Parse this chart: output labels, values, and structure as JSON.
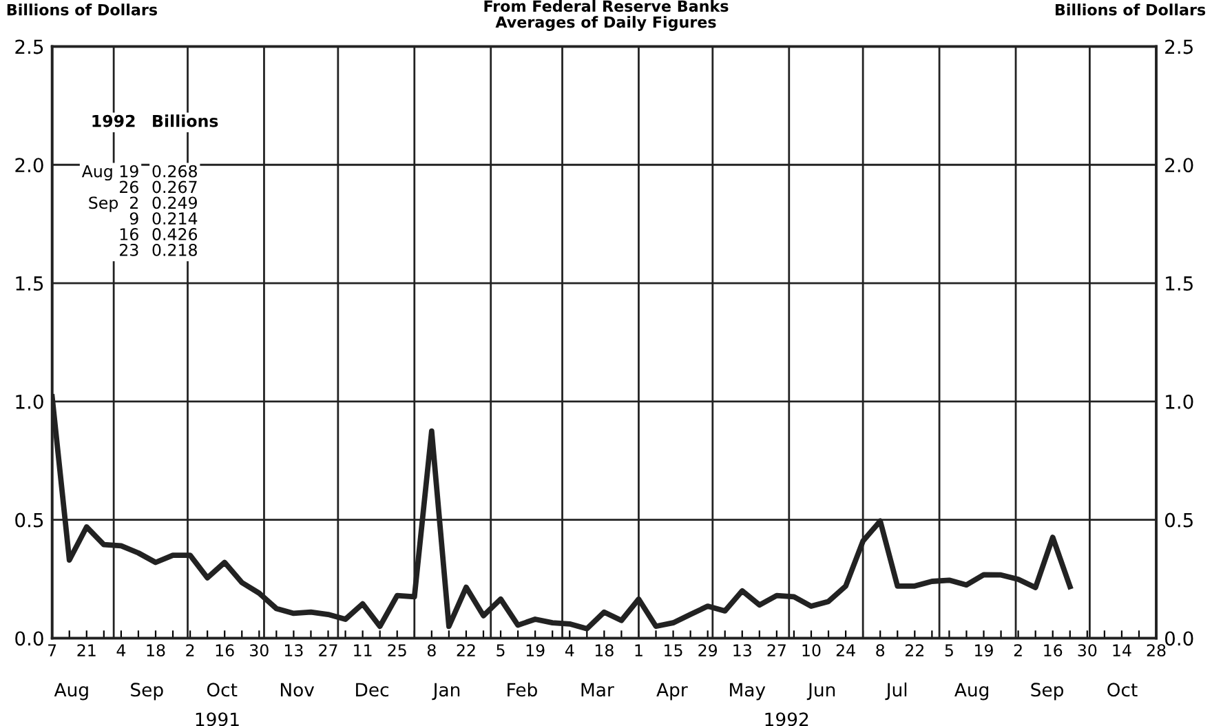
{
  "chart_data": {
    "type": "line",
    "title": "From Federal Reserve Banks\nAverages of Daily Figures",
    "ylabel": "Billions of Dollars",
    "y2label": "Billions of Dollars",
    "x": [
      "1991-08-07",
      "1991-08-14",
      "1991-08-21",
      "1991-08-28",
      "1991-09-04",
      "1991-09-11",
      "1991-09-18",
      "1991-09-25",
      "1991-10-02",
      "1991-10-09",
      "1991-10-16",
      "1991-10-23",
      "1991-10-30",
      "1991-11-06",
      "1991-11-13",
      "1991-11-20",
      "1991-11-27",
      "1991-12-04",
      "1991-12-11",
      "1991-12-18",
      "1991-12-25",
      "1992-01-01",
      "1992-01-08",
      "1992-01-15",
      "1992-01-22",
      "1992-01-29",
      "1992-02-05",
      "1992-02-12",
      "1992-02-19",
      "1992-02-26",
      "1992-03-04",
      "1992-03-11",
      "1992-03-18",
      "1992-03-25",
      "1992-04-01",
      "1992-04-08",
      "1992-04-15",
      "1992-04-22",
      "1992-04-29",
      "1992-05-06",
      "1992-05-13",
      "1992-05-20",
      "1992-05-27",
      "1992-06-03",
      "1992-06-10",
      "1992-06-17",
      "1992-06-24",
      "1992-07-01",
      "1992-07-08",
      "1992-07-15",
      "1992-07-22",
      "1992-07-29",
      "1992-08-05",
      "1992-08-12",
      "1992-08-19",
      "1992-08-26",
      "1992-09-02",
      "1992-09-09",
      "1992-09-16",
      "1992-09-23"
    ],
    "series": [
      {
        "color": "#222222",
        "values": [
          1.02,
          0.33,
          0.47,
          0.395,
          0.39,
          0.36,
          0.32,
          0.35,
          0.35,
          0.255,
          0.32,
          0.235,
          0.19,
          0.125,
          0.105,
          0.11,
          0.1,
          0.08,
          0.145,
          0.05,
          0.18,
          0.175,
          0.875,
          0.05,
          0.215,
          0.095,
          0.165,
          0.055,
          0.08,
          0.065,
          0.06,
          0.04,
          0.11,
          0.075,
          0.165,
          0.05,
          0.065,
          0.1,
          0.135,
          0.115,
          0.2,
          0.14,
          0.18,
          0.175,
          0.135,
          0.155,
          0.22,
          0.41,
          0.495,
          0.22,
          0.22,
          0.24,
          0.245,
          0.225,
          0.268,
          0.267,
          0.249,
          0.214,
          0.426,
          0.218
        ]
      }
    ],
    "xlim": [
      "1991-08-07",
      "1992-10-28"
    ],
    "xticks": [
      {
        "value": "1991-08-07",
        "label": "7"
      },
      {
        "value": "1991-08-14",
        "label": null
      },
      {
        "value": "1991-08-21",
        "label": "21"
      },
      {
        "value": "1991-08-28",
        "label": null
      },
      {
        "value": "1991-09-04",
        "label": "4"
      },
      {
        "value": "1991-09-11",
        "label": null
      },
      {
        "value": "1991-09-18",
        "label": "18"
      },
      {
        "value": "1991-09-25",
        "label": null
      },
      {
        "value": "1991-10-02",
        "label": "2"
      },
      {
        "value": "1991-10-09",
        "label": null
      },
      {
        "value": "1991-10-16",
        "label": "16"
      },
      {
        "value": "1991-10-23",
        "label": null
      },
      {
        "value": "1991-10-30",
        "label": "30"
      },
      {
        "value": "1991-11-06",
        "label": null
      },
      {
        "value": "1991-11-13",
        "label": "13"
      },
      {
        "value": "1991-11-20",
        "label": null
      },
      {
        "value": "1991-11-27",
        "label": "27"
      },
      {
        "value": "1991-12-04",
        "label": null
      },
      {
        "value": "1991-12-11",
        "label": "11"
      },
      {
        "value": "1991-12-18",
        "label": null
      },
      {
        "value": "1991-12-25",
        "label": "25"
      },
      {
        "value": "1992-01-01",
        "label": null
      },
      {
        "value": "1992-01-08",
        "label": "8"
      },
      {
        "value": "1992-01-15",
        "label": null
      },
      {
        "value": "1992-01-22",
        "label": "22"
      },
      {
        "value": "1992-01-29",
        "label": null
      },
      {
        "value": "1992-02-05",
        "label": "5"
      },
      {
        "value": "1992-02-12",
        "label": null
      },
      {
        "value": "1992-02-19",
        "label": "19"
      },
      {
        "value": "1992-02-26",
        "label": null
      },
      {
        "value": "1992-03-04",
        "label": "4"
      },
      {
        "value": "1992-03-11",
        "label": null
      },
      {
        "value": "1992-03-18",
        "label": "18"
      },
      {
        "value": "1992-03-25",
        "label": null
      },
      {
        "value": "1992-04-01",
        "label": "1"
      },
      {
        "value": "1992-04-08",
        "label": null
      },
      {
        "value": "1992-04-15",
        "label": "15"
      },
      {
        "value": "1992-04-22",
        "label": null
      },
      {
        "value": "1992-04-29",
        "label": "29"
      },
      {
        "value": "1992-05-06",
        "label": null
      },
      {
        "value": "1992-05-13",
        "label": "13"
      },
      {
        "value": "1992-05-20",
        "label": null
      },
      {
        "value": "1992-05-27",
        "label": "27"
      },
      {
        "value": "1992-06-03",
        "label": null
      },
      {
        "value": "1992-06-10",
        "label": "10"
      },
      {
        "value": "1992-06-17",
        "label": null
      },
      {
        "value": "1992-06-24",
        "label": "24"
      },
      {
        "value": "1992-07-01",
        "label": null
      },
      {
        "value": "1992-07-08",
        "label": "8"
      },
      {
        "value": "1992-07-15",
        "label": null
      },
      {
        "value": "1992-07-22",
        "label": "22"
      },
      {
        "value": "1992-07-29",
        "label": null
      },
      {
        "value": "1992-08-05",
        "label": "5"
      },
      {
        "value": "1992-08-12",
        "label": null
      },
      {
        "value": "1992-08-19",
        "label": "19"
      },
      {
        "value": "1992-08-26",
        "label": null
      },
      {
        "value": "1992-09-02",
        "label": "2"
      },
      {
        "value": "1992-09-09",
        "label": null
      },
      {
        "value": "1992-09-16",
        "label": "16"
      },
      {
        "value": "1992-09-23",
        "label": null
      },
      {
        "value": "1992-09-30",
        "label": "30"
      },
      {
        "value": "1992-10-07",
        "label": null
      },
      {
        "value": "1992-10-14",
        "label": "14"
      },
      {
        "value": "1992-10-21",
        "label": null
      },
      {
        "value": "1992-10-28",
        "label": "28"
      }
    ],
    "ylim": [
      0,
      2.5
    ],
    "yticks": [
      {
        "value": 0,
        "label": "0.0"
      },
      {
        "value": 0.5,
        "label": "0.5"
      },
      {
        "value": 1,
        "label": "1.0"
      },
      {
        "value": 1.5,
        "label": "1.5"
      },
      {
        "value": 2,
        "label": "2.0"
      },
      {
        "value": 2.5,
        "label": "2.5"
      }
    ],
    "y2lim": [
      0,
      2.5
    ],
    "y2ticks": [
      {
        "value": 0,
        "label": "0.0"
      },
      {
        "value": 0.5,
        "label": "0.5"
      },
      {
        "value": 1,
        "label": "1.0"
      },
      {
        "value": 1.5,
        "label": "1.5"
      },
      {
        "value": 2,
        "label": "2.0"
      },
      {
        "value": 2.5,
        "label": "2.5"
      }
    ],
    "grid": "y",
    "line_style": "solid",
    "ref_lines": [
      {
        "axis": "x",
        "value": "1991-09-01",
        "color": "#222222"
      },
      {
        "axis": "x",
        "value": "1991-10-01",
        "color": "#222222"
      },
      {
        "axis": "x",
        "value": "1991-11-01",
        "color": "#222222"
      },
      {
        "axis": "x",
        "value": "1991-12-01",
        "color": "#222222"
      },
      {
        "axis": "x",
        "value": "1992-01-01",
        "color": "#222222"
      },
      {
        "axis": "x",
        "value": "1992-02-01",
        "color": "#222222"
      },
      {
        "axis": "x",
        "value": "1992-03-01",
        "color": "#222222"
      },
      {
        "axis": "x",
        "value": "1992-04-01",
        "color": "#222222"
      },
      {
        "axis": "x",
        "value": "1992-05-01",
        "color": "#222222"
      },
      {
        "axis": "x",
        "value": "1992-06-01",
        "color": "#222222"
      },
      {
        "axis": "x",
        "value": "1992-07-01",
        "color": "#222222"
      },
      {
        "axis": "x",
        "value": "1992-08-01",
        "color": "#222222"
      },
      {
        "axis": "x",
        "value": "1992-09-01",
        "color": "#222222"
      },
      {
        "axis": "x",
        "value": "1992-10-01",
        "color": "#222222"
      }
    ],
    "annotations": [
      "1992",
      "Billions",
      "Aug 19\n26\nSep  2\n9\n16\n23",
      "0.268\n0.267\n0.249\n0.214\n0.426\n0.218",
      "Aug",
      "Sep",
      "Oct",
      "Nov",
      "Dec",
      "Jan",
      "Feb",
      "Mar",
      "Apr",
      "May",
      "Jun",
      "Jul",
      "Aug",
      "Sep",
      "Oct",
      "1991",
      "1992"
    ]
  }
}
